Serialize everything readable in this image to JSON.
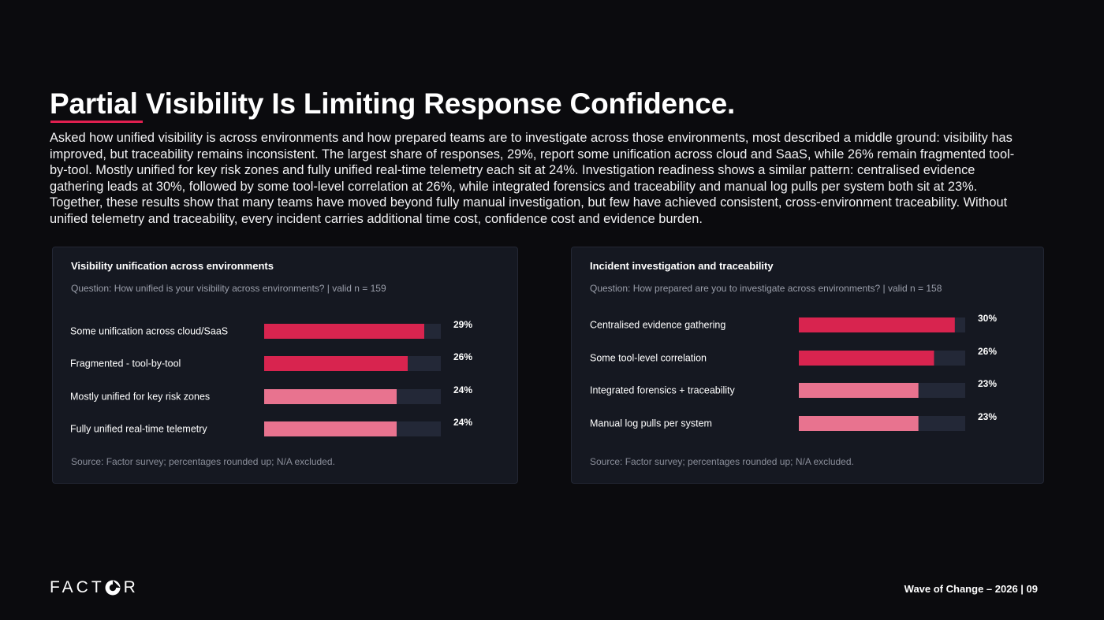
{
  "page": {
    "title": "Partial Visibility Is Limiting Response Confidence.",
    "intro": "Asked how unified visibility is across environments and how prepared teams are to investigate across those environments, most described a middle ground: visibility has improved, but traceability remains inconsistent. The largest share of responses, 29%, report some unification across cloud and SaaS, while 26% remain fragmented tool-by-tool. Mostly unified for key risk zones and fully unified real-time telemetry each sit at 24%. Investigation readiness shows a similar pattern: centralised evidence gathering leads at 30%, followed by some tool-level correlation at 26%, while integrated forensics and traceability and manual log pulls per system both sit at 23%. Together, these results show that many teams have moved beyond fully manual investigation, but few have achieved consistent, cross-environment traceability. Without unified telemetry and traceability, every incident carries additional time cost, confidence cost and evidence burden.",
    "logo_text_left": "FACT",
    "logo_text_right": "R",
    "footer": "Wave of Change – 2026 | 09"
  },
  "colors": {
    "background": "#0b0b0e",
    "card": "#151821",
    "track": "#232837",
    "bar_strong": "#d8244f",
    "bar_light": "#e8738f",
    "accent": "#e01f4f"
  },
  "chart_data": [
    {
      "type": "bar",
      "orientation": "horizontal",
      "title": "Visibility unification across environments",
      "question": "Question: How unified is your visibility across environments? | valid n = 159",
      "source": "Source: Factor survey; percentages rounded up; N/A excluded.",
      "categories": [
        "Some unification across cloud/SaaS",
        "Fragmented - tool-by-tool",
        "Mostly unified for key risk zones",
        "Fully unified real-time telemetry"
      ],
      "values": [
        29,
        26,
        24,
        24
      ],
      "value_labels": [
        "29%",
        "26%",
        "24%",
        "24%"
      ],
      "bar_colors": [
        "#d8244f",
        "#d8244f",
        "#e8738f",
        "#e8738f"
      ],
      "xlim": [
        0,
        32
      ],
      "grid": false
    },
    {
      "type": "bar",
      "orientation": "horizontal",
      "title": "Incident investigation and traceability",
      "question": "Question: How prepared are you to investigate across environments? | valid n = 158",
      "source": "Source: Factor survey; percentages rounded up; N/A excluded.",
      "categories": [
        "Centralised evidence gathering",
        "Some tool-level correlation",
        "Integrated forensics + traceability",
        "Manual log pulls per system"
      ],
      "values": [
        30,
        26,
        23,
        23
      ],
      "value_labels": [
        "30%",
        "26%",
        "23%",
        "23%"
      ],
      "bar_colors": [
        "#d8244f",
        "#d8244f",
        "#e8738f",
        "#e8738f"
      ],
      "xlim": [
        0,
        32
      ],
      "grid": false
    }
  ]
}
